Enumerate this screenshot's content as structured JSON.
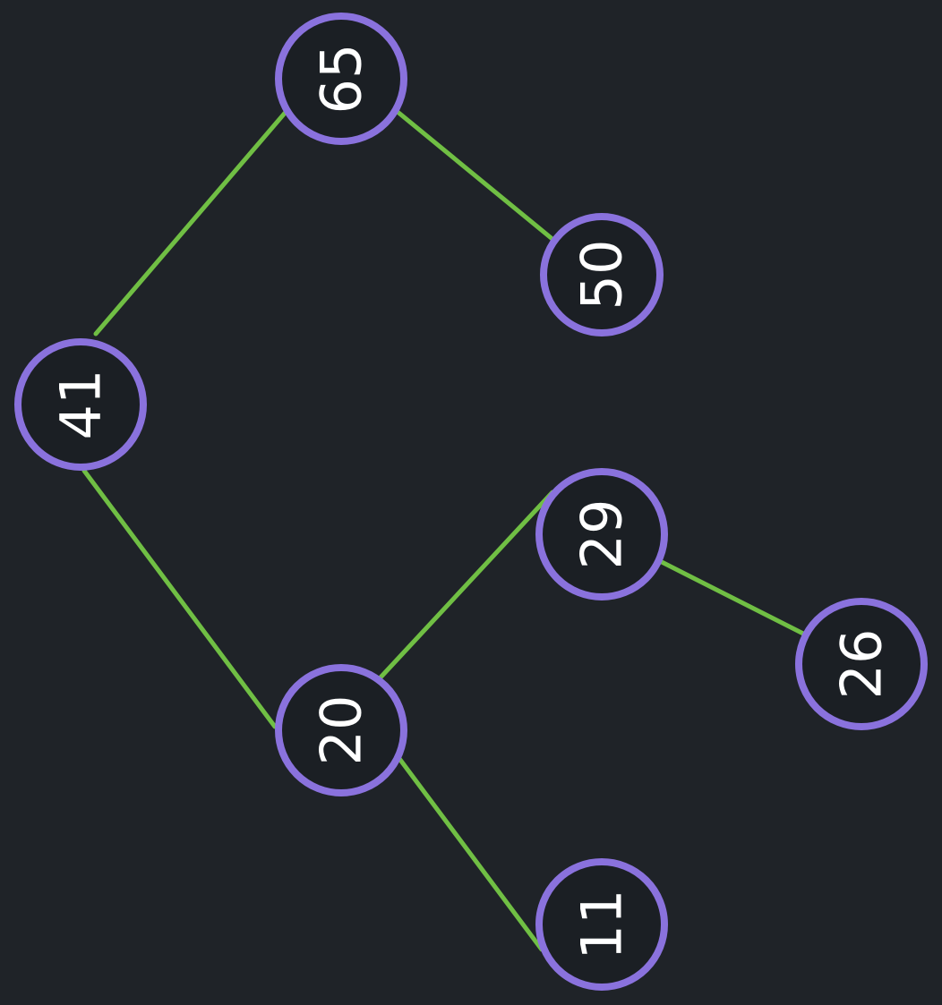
{
  "tree": {
    "nodes": [
      {
        "id": "n41",
        "label": "41"
      },
      {
        "id": "n65",
        "label": "65"
      },
      {
        "id": "n50",
        "label": "50"
      },
      {
        "id": "n20",
        "label": "20"
      },
      {
        "id": "n29",
        "label": "29"
      },
      {
        "id": "n26",
        "label": "26"
      },
      {
        "id": "n11",
        "label": "11"
      }
    ],
    "edges": [
      {
        "from": "n41",
        "to": "n65"
      },
      {
        "from": "n65",
        "to": "n50"
      },
      {
        "from": "n41",
        "to": "n20"
      },
      {
        "from": "n20",
        "to": "n29"
      },
      {
        "from": "n29",
        "to": "n26"
      },
      {
        "from": "n20",
        "to": "n11"
      }
    ]
  },
  "colors": {
    "background": "#1f2328",
    "node_outline": "#8a72dd",
    "edge": "#70bf44",
    "label": "#ffffff"
  }
}
